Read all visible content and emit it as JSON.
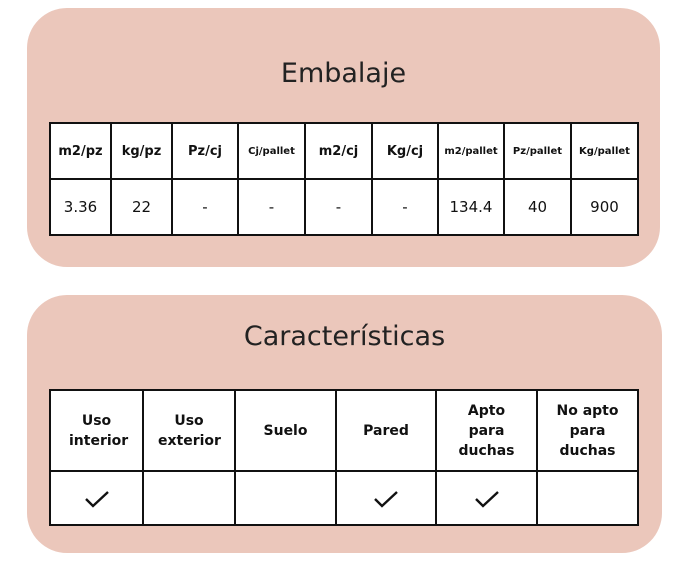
{
  "embalaje": {
    "title": "Embalaje",
    "headers": [
      "m2/pz",
      "kg/pz",
      "Pz/cj",
      "Cj/pallet",
      "m2/cj",
      "Kg/cj",
      "m2/pallet",
      "Pz/pallet",
      "Kg/pallet"
    ],
    "values": [
      "3.36",
      "22",
      "-",
      "-",
      "-",
      "-",
      "134.4",
      "40",
      "900"
    ]
  },
  "caracteristicas": {
    "title": "Características",
    "headers": [
      "Uso interior",
      "Uso exterior",
      "Suelo",
      "Pared",
      "Apto para duchas",
      "No apto para duchas"
    ],
    "checked": [
      true,
      false,
      false,
      true,
      true,
      false
    ]
  },
  "colors": {
    "card": "#ebc7bb"
  }
}
